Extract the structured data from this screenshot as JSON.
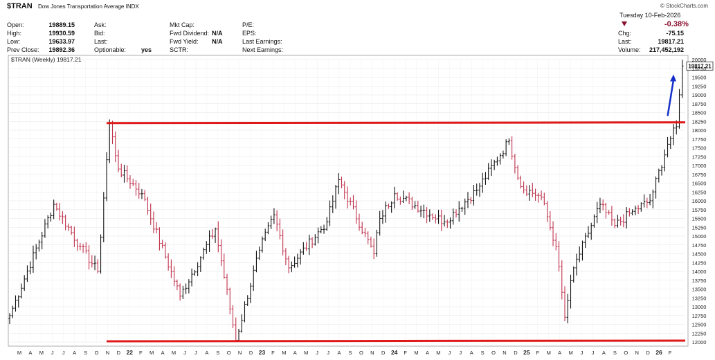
{
  "header": {
    "symbol": "$TRAN",
    "description": "Dow Jones Transportation Average",
    "exchange": "INDX",
    "brand": "© StockCharts.com",
    "date": "Tuesday  10-Feb-2026",
    "change_pct": "-0.38%",
    "col1": [
      {
        "label": "Open:",
        "value": "19889.15"
      },
      {
        "label": "High:",
        "value": "19930.59"
      },
      {
        "label": "Low:",
        "value": "19633.97"
      },
      {
        "label": "Prev Close:",
        "value": "19892.36"
      }
    ],
    "col2": [
      {
        "label": "Ask:",
        "value": ""
      },
      {
        "label": "Bid:",
        "value": ""
      },
      {
        "label": "Last:",
        "value": ""
      },
      {
        "label": "Optionable:",
        "value": "yes"
      }
    ],
    "col3": [
      {
        "label": "Mkt Cap:",
        "value": ""
      },
      {
        "label": "Fwd Dividend:",
        "value": "N/A"
      },
      {
        "label": "Fwd Yield:",
        "value": "N/A"
      },
      {
        "label": "SCTR:",
        "value": ""
      }
    ],
    "col4": [
      {
        "label": "P/E:",
        "value": ""
      },
      {
        "label": "EPS:",
        "value": ""
      },
      {
        "label": "Last Earnings:",
        "value": ""
      },
      {
        "label": "Next Earnings:",
        "value": ""
      }
    ],
    "col5": [
      {
        "label": "Chg:",
        "value": "-75.15"
      },
      {
        "label": "Last:",
        "value": "19817.21"
      },
      {
        "label": "Volume:",
        "value": "217,452,192"
      }
    ]
  },
  "chart_data": {
    "type": "ohlc",
    "legend": "$TRAN (Weekly) 19817.21",
    "last_price_label": "19817.21",
    "ylim": [
      12000,
      20000
    ],
    "y_ticks": [
      12000,
      12250,
      12500,
      12750,
      13000,
      13250,
      13500,
      13750,
      14000,
      14250,
      14500,
      14750,
      15000,
      15250,
      15500,
      15750,
      16000,
      16250,
      16500,
      16750,
      17000,
      17250,
      17500,
      17750,
      18000,
      18250,
      18500,
      18750,
      19000,
      19250,
      19500,
      19750,
      20000
    ],
    "x_tick_labels": [
      "M",
      "A",
      "M",
      "J",
      "J",
      "A",
      "S",
      "O",
      "N",
      "D",
      "22",
      "F",
      "M",
      "A",
      "M",
      "J",
      "J",
      "A",
      "S",
      "O",
      "N",
      "D",
      "23",
      "F",
      "M",
      "A",
      "M",
      "J",
      "J",
      "A",
      "S",
      "O",
      "N",
      "D",
      "24",
      "F",
      "M",
      "A",
      "M",
      "J",
      "J",
      "A",
      "S",
      "O",
      "N",
      "D",
      "25",
      "F",
      "M",
      "A",
      "M",
      "J",
      "J",
      "A",
      "S",
      "O",
      "N",
      "D",
      "26",
      "F"
    ],
    "key_closes": [
      {
        "week": 0,
        "close": 12750
      },
      {
        "week": 15,
        "close": 15900
      },
      {
        "week": 24,
        "close": 14700
      },
      {
        "week": 30,
        "close": 14000
      },
      {
        "week": 34,
        "close": 18200
      },
      {
        "week": 37,
        "close": 16900
      },
      {
        "week": 45,
        "close": 16200
      },
      {
        "week": 58,
        "close": 13300
      },
      {
        "week": 70,
        "close": 15200
      },
      {
        "week": 77,
        "close": 12050
      },
      {
        "week": 85,
        "close": 14600
      },
      {
        "week": 90,
        "close": 15600
      },
      {
        "week": 95,
        "close": 14100
      },
      {
        "week": 108,
        "close": 15400
      },
      {
        "week": 112,
        "close": 16600
      },
      {
        "week": 124,
        "close": 14500
      },
      {
        "week": 126,
        "close": 15500
      },
      {
        "week": 131,
        "close": 16200
      },
      {
        "week": 148,
        "close": 15400
      },
      {
        "week": 159,
        "close": 16300
      },
      {
        "week": 170,
        "close": 17700
      },
      {
        "week": 174,
        "close": 16400
      },
      {
        "week": 181,
        "close": 16100
      },
      {
        "week": 186,
        "close": 14700
      },
      {
        "week": 189,
        "close": 12700
      },
      {
        "week": 192,
        "close": 14100
      },
      {
        "week": 201,
        "close": 15900
      },
      {
        "week": 206,
        "close": 15300
      },
      {
        "week": 212,
        "close": 15700
      },
      {
        "week": 218,
        "close": 16000
      },
      {
        "week": 224,
        "close": 17600
      },
      {
        "week": 227,
        "close": 18100
      },
      {
        "week": 229,
        "close": 19817.21
      }
    ],
    "resistance_line": {
      "from_week": 33,
      "to_week": 230,
      "value": 18200
    },
    "support_line": {
      "from_week": 33,
      "to_week": 230,
      "value": 12000
    },
    "arrow": {
      "from_week": 224,
      "from_value": 18400,
      "to_week": 226,
      "to_value": 19500
    },
    "colors": {
      "up": "#111111",
      "down": "#c0304a",
      "line": "#e01818",
      "arrow": "#1530c8",
      "grid": "#e6e6e6"
    }
  }
}
